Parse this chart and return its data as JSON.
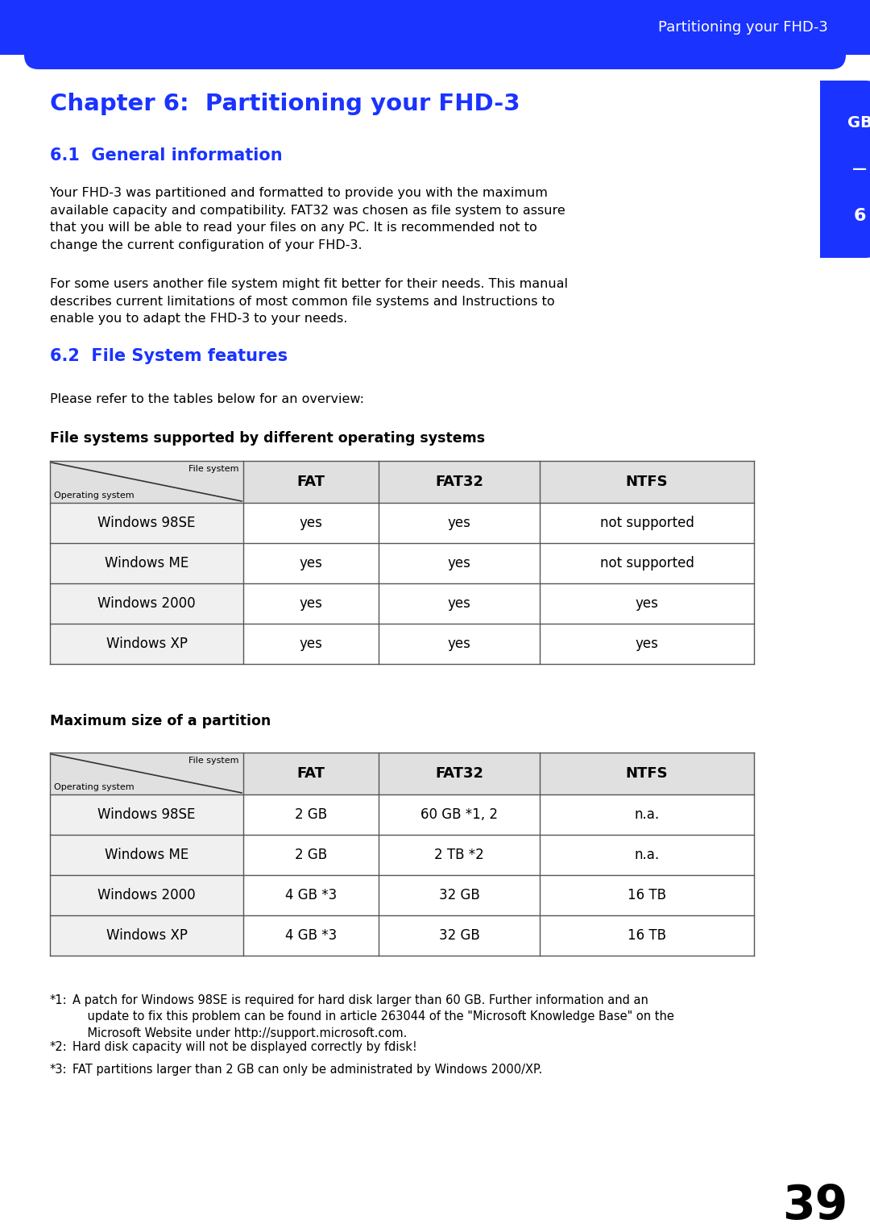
{
  "header_color": "#1a33ff",
  "header_text": "Partitioning your FHD-3",
  "header_text_color": "#ffffff",
  "blue_title_color": "#1a33ff",
  "chapter_title": "Chapter 6:  Partitioning your FHD-3",
  "section1_title": "6.1  General information",
  "section1_para1": "Your FHD-3 was partitioned and formatted to provide you with the maximum\navailable capacity and compatibility. FAT32 was chosen as file system to assure\nthat you will be able to read your files on any PC. It is recommended not to\nchange the current configuration of your FHD-3.",
  "section1_para2": "For some users another file system might fit better for their needs. This manual\ndescribes current limitations of most common file systems and Instructions to\nenable you to adapt the FHD-3 to your needs.",
  "section2_title": "6.2  File System features",
  "section2_intro": "Please refer to the tables below for an overview:",
  "table1_title": "File systems supported by different operating systems",
  "table1_header": [
    "FAT",
    "FAT32",
    "NTFS"
  ],
  "table1_col0_label_top": "File system",
  "table1_col0_label_bottom": "Operating system",
  "table1_rows": [
    [
      "Windows 98SE",
      "yes",
      "yes",
      "not supported"
    ],
    [
      "Windows ME",
      "yes",
      "yes",
      "not supported"
    ],
    [
      "Windows 2000",
      "yes",
      "yes",
      "yes"
    ],
    [
      "Windows XP",
      "yes",
      "yes",
      "yes"
    ]
  ],
  "table2_title": "Maximum size of a partition",
  "table2_header": [
    "FAT",
    "FAT32",
    "NTFS"
  ],
  "table2_col0_label_top": "File system",
  "table2_col0_label_bottom": "Operating system",
  "table2_rows": [
    [
      "Windows 98SE",
      "2 GB",
      "60 GB *1, 2",
      "n.a."
    ],
    [
      "Windows ME",
      "2 GB",
      "2 TB *2",
      "n.a."
    ],
    [
      "Windows 2000",
      "4 GB *3",
      "32 GB",
      "16 TB"
    ],
    [
      "Windows XP",
      "4 GB *3",
      "32 GB",
      "16 TB"
    ]
  ],
  "footnote1_bullet": "*1:",
  "footnote1_text": "A patch for Windows 98SE is required for hard disk larger than 60 GB. Further information and an\n    update to fix this problem can be found in article 263044 of the \"Microsoft Knowledge Base\" on the\n    Microsoft Website under http://support.microsoft.com.",
  "footnote2_bullet": "*2:",
  "footnote2_text": "Hard disk capacity will not be displayed correctly by fdisk!",
  "footnote3_bullet": "*3:",
  "footnote3_text": "FAT partitions larger than 2 GB can only be administrated by Windows 2000/XP.",
  "page_number": "39",
  "background_color": "#ffffff",
  "table_bg_header": "#e0e0e0",
  "table_bg_row_os": "#f0f0f0",
  "table_bg_row_data": "#ffffff",
  "table_border_color": "#555555",
  "text_color": "#000000"
}
